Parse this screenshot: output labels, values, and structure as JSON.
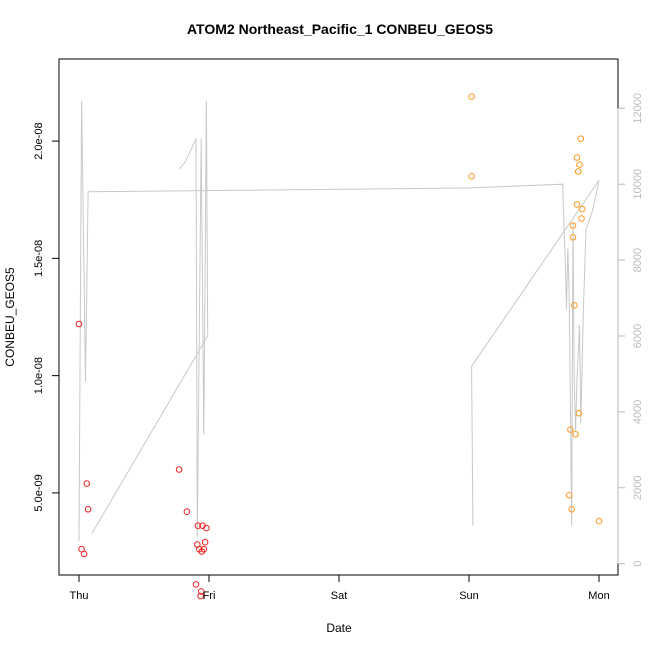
{
  "chart_data": {
    "type": "scatter",
    "title": "ATOM2 Northeast_Pacific_1 CONBEU_GEOS5",
    "xlabel": "Date",
    "ylabel": "CONBEU_GEOS5",
    "x_ticks": [
      "Thu",
      "Fri",
      "Sat",
      "Sun",
      "Mon"
    ],
    "x_range_days": [
      -0.13,
      4.08
    ],
    "y_ticks": [
      "5.0e-09",
      "1.0e-08",
      "1.5e-08",
      "2.0e-08"
    ],
    "y_tick_values": [
      5e-09,
      1e-08,
      1.5e-08,
      2e-08
    ],
    "ylim": [
      1.5e-09,
      2.35e-08
    ],
    "y2_ticks": [
      "0",
      "2000",
      "4000",
      "6000",
      "8000",
      "10000",
      "12000"
    ],
    "y2_tick_values": [
      0,
      2000,
      4000,
      6000,
      8000,
      10000,
      12000
    ],
    "y2lim": [
      -300,
      13300
    ],
    "grid": false,
    "colors": {
      "series_red": "#ee2222",
      "series_orange": "#ff9922",
      "altitude_line": "#c8c8c8"
    },
    "series": [
      {
        "color": "#ee2222",
        "points": [
          [
            0.0,
            1.22e-08
          ],
          [
            0.02,
            2.6e-09
          ],
          [
            0.04,
            2.4e-09
          ],
          [
            0.06,
            5.4e-09
          ],
          [
            0.07,
            4.3e-09
          ],
          [
            0.77,
            6e-09
          ],
          [
            0.83,
            4.2e-09
          ],
          [
            0.9,
            1.1e-09
          ],
          [
            0.91,
            2.8e-09
          ],
          [
            0.915,
            3.6e-09
          ],
          [
            0.925,
            2.6e-09
          ],
          [
            0.935,
            6e-10
          ],
          [
            0.94,
            8e-10
          ],
          [
            0.945,
            2.5e-09
          ],
          [
            0.95,
            3.6e-09
          ],
          [
            0.96,
            2.6e-09
          ],
          [
            0.97,
            2.9e-09
          ],
          [
            0.98,
            3.5e-09
          ]
        ]
      },
      {
        "color": "#ff9922",
        "points": [
          [
            3.02,
            2.19e-08
          ],
          [
            3.02,
            1.85e-08
          ],
          [
            3.77,
            4.9e-09
          ],
          [
            3.78,
            7.7e-09
          ],
          [
            3.79,
            4.3e-09
          ],
          [
            3.8,
            1.64e-08
          ],
          [
            3.8,
            1.59e-08
          ],
          [
            3.81,
            1.3e-08
          ],
          [
            3.82,
            7.5e-09
          ],
          [
            3.83,
            1.93e-08
          ],
          [
            3.83,
            1.73e-08
          ],
          [
            3.84,
            1.87e-08
          ],
          [
            3.845,
            8.4e-09
          ],
          [
            3.85,
            1.9e-08
          ],
          [
            3.86,
            2.01e-08
          ],
          [
            3.865,
            1.67e-08
          ],
          [
            3.87,
            1.71e-08
          ],
          [
            4.0,
            3.8e-09
          ]
        ]
      }
    ],
    "altitude_line": {
      "axis": "right",
      "points": [
        [
          0.0,
          600
        ],
        [
          0.02,
          12200
        ],
        [
          0.05,
          4800
        ],
        [
          0.07,
          9800
        ],
        [
          2.98,
          9900
        ],
        [
          3.72,
          10000
        ],
        [
          3.74,
          8000
        ],
        [
          3.75,
          6700
        ],
        [
          3.76,
          8300
        ],
        [
          3.77,
          7200
        ],
        [
          3.78,
          4200
        ],
        [
          3.79,
          1000
        ],
        [
          3.8,
          9000
        ],
        [
          3.81,
          4700
        ],
        [
          3.82,
          3500
        ],
        [
          3.83,
          4800
        ],
        [
          3.85,
          6300
        ],
        [
          3.86,
          3700
        ],
        [
          3.88,
          6700
        ],
        [
          3.9,
          8800
        ],
        [
          3.95,
          9300
        ],
        [
          4.0,
          10100
        ],
        [
          3.02,
          5200
        ],
        [
          3.03,
          1000
        ]
      ],
      "extra_segments": [
        [
          [
            0.77,
            10400
          ],
          [
            0.82,
            10600
          ],
          [
            0.9,
            11200
          ],
          [
            0.91,
            700
          ],
          [
            0.94,
            11200
          ],
          [
            0.96,
            3400
          ],
          [
            0.98,
            12200
          ],
          [
            0.99,
            6000
          ],
          [
            0.1,
            800
          ]
        ]
      ]
    }
  }
}
